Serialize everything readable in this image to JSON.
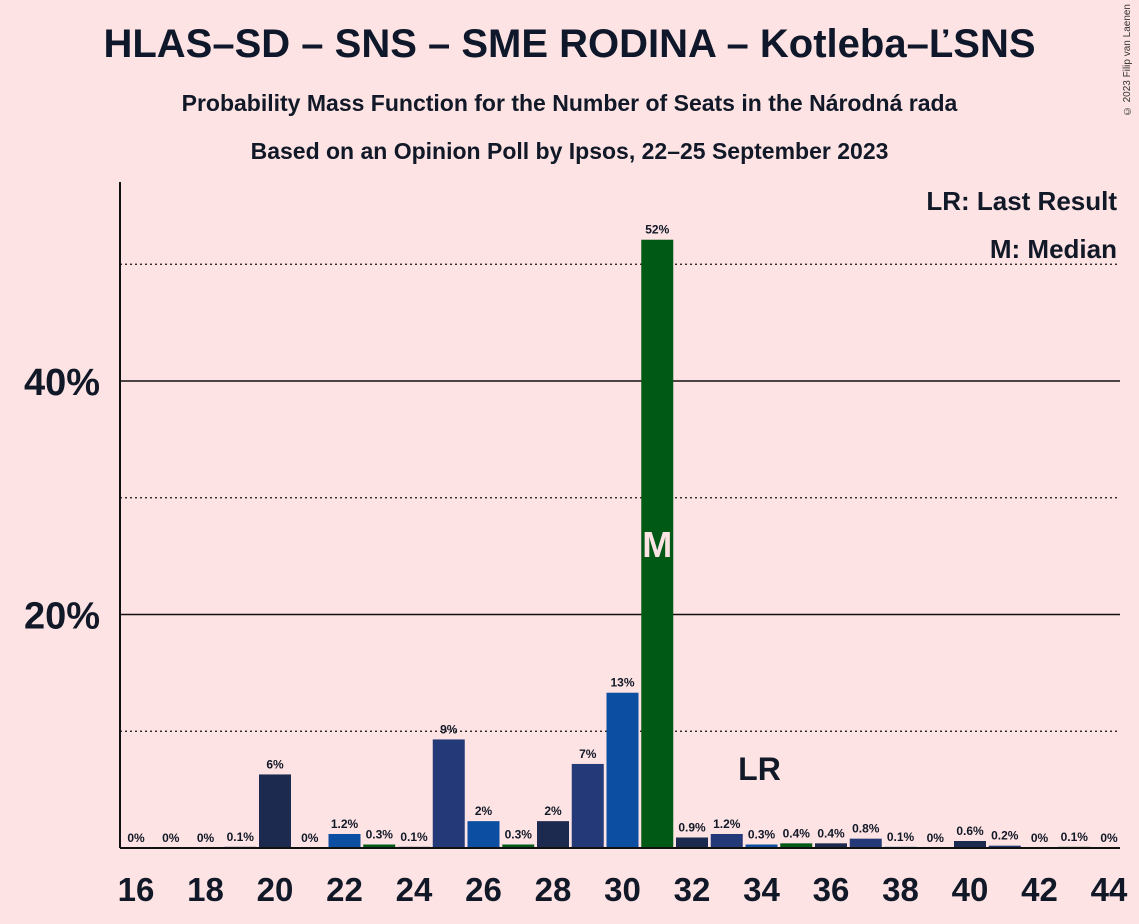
{
  "title": "HLAS–SD – SNS – SME RODINA – Kotleba–ĽSNS",
  "subtitle1": "Probability Mass Function for the Number of Seats in the Národná rada",
  "subtitle2": "Based on an Opinion Poll by Ipsos, 22–25 September 2023",
  "copyright": "© 2023 Filip van Laenen",
  "legend": {
    "lr": "LR: Last Result",
    "m": "M: Median"
  },
  "markers": {
    "lr_label": "LR",
    "lr_seat": 34,
    "median_label": "M",
    "median_seat": 31
  },
  "colors": {
    "background": "#fde3e3",
    "dark_navy": "#1b2a4e",
    "blue": "#0b4ea2",
    "navy": "#243a78",
    "green": "#005a16",
    "text": "#111827"
  },
  "chart_data": {
    "type": "bar",
    "xlabel": "",
    "ylabel": "",
    "ylim": [
      0,
      57
    ],
    "ytick_labels": [
      "20%",
      "40%"
    ],
    "yticks": [
      20,
      40
    ],
    "dotted_lines": [
      10,
      30,
      50
    ],
    "xtick_labels": [
      "16",
      "18",
      "20",
      "22",
      "24",
      "26",
      "28",
      "30",
      "32",
      "34",
      "36",
      "38",
      "40",
      "42",
      "44"
    ],
    "categories": [
      16,
      17,
      18,
      19,
      20,
      21,
      22,
      23,
      24,
      25,
      26,
      27,
      28,
      29,
      30,
      31,
      32,
      33,
      34,
      35,
      36,
      37,
      38,
      39,
      40,
      41,
      42,
      43,
      44
    ],
    "values": [
      0,
      0,
      0,
      0.1,
      6,
      0,
      1.2,
      0.3,
      0.1,
      9,
      2,
      0.3,
      2,
      7,
      13,
      52,
      0.9,
      1.2,
      0.3,
      0.4,
      0.4,
      0.8,
      0.1,
      0,
      0.6,
      0.2,
      0,
      0.1,
      0
    ],
    "bar_heights": [
      0,
      0,
      0,
      0.1,
      6.3,
      0,
      1.2,
      0.3,
      0.1,
      9.3,
      2.3,
      0.3,
      2.3,
      7.2,
      13.3,
      52.1,
      0.9,
      1.2,
      0.3,
      0.4,
      0.4,
      0.8,
      0.1,
      0,
      0.6,
      0.2,
      0,
      0.1,
      0
    ],
    "data_labels": [
      "0%",
      "0%",
      "0%",
      "0.1%",
      "6%",
      "0%",
      "1.2%",
      "0.3%",
      "0.1%",
      "9%",
      "2%",
      "0.3%",
      "2%",
      "7%",
      "13%",
      "52%",
      "0.9%",
      "1.2%",
      "0.3%",
      "0.4%",
      "0.4%",
      "0.8%",
      "0.1%",
      "0%",
      "0.6%",
      "0.2%",
      "0%",
      "0.1%",
      "0%"
    ],
    "bar_colors": [
      "#1b2a4e",
      "#1b2a4e",
      "#1b2a4e",
      "#1b2a4e",
      "#1b2a4e",
      "#0b4ea2",
      "#0b4ea2",
      "#005a16",
      "#1b2a4e",
      "#243a78",
      "#0b4ea2",
      "#005a16",
      "#1b2a4e",
      "#243a78",
      "#0b4ea2",
      "#005a16",
      "#1b2a4e",
      "#243a78",
      "#0b4ea2",
      "#005a16",
      "#1b2a4e",
      "#243a78",
      "#0b4ea2",
      "#005a16",
      "#1b2a4e",
      "#243a78",
      "#0b4ea2",
      "#005a16",
      "#1b2a4e"
    ]
  }
}
